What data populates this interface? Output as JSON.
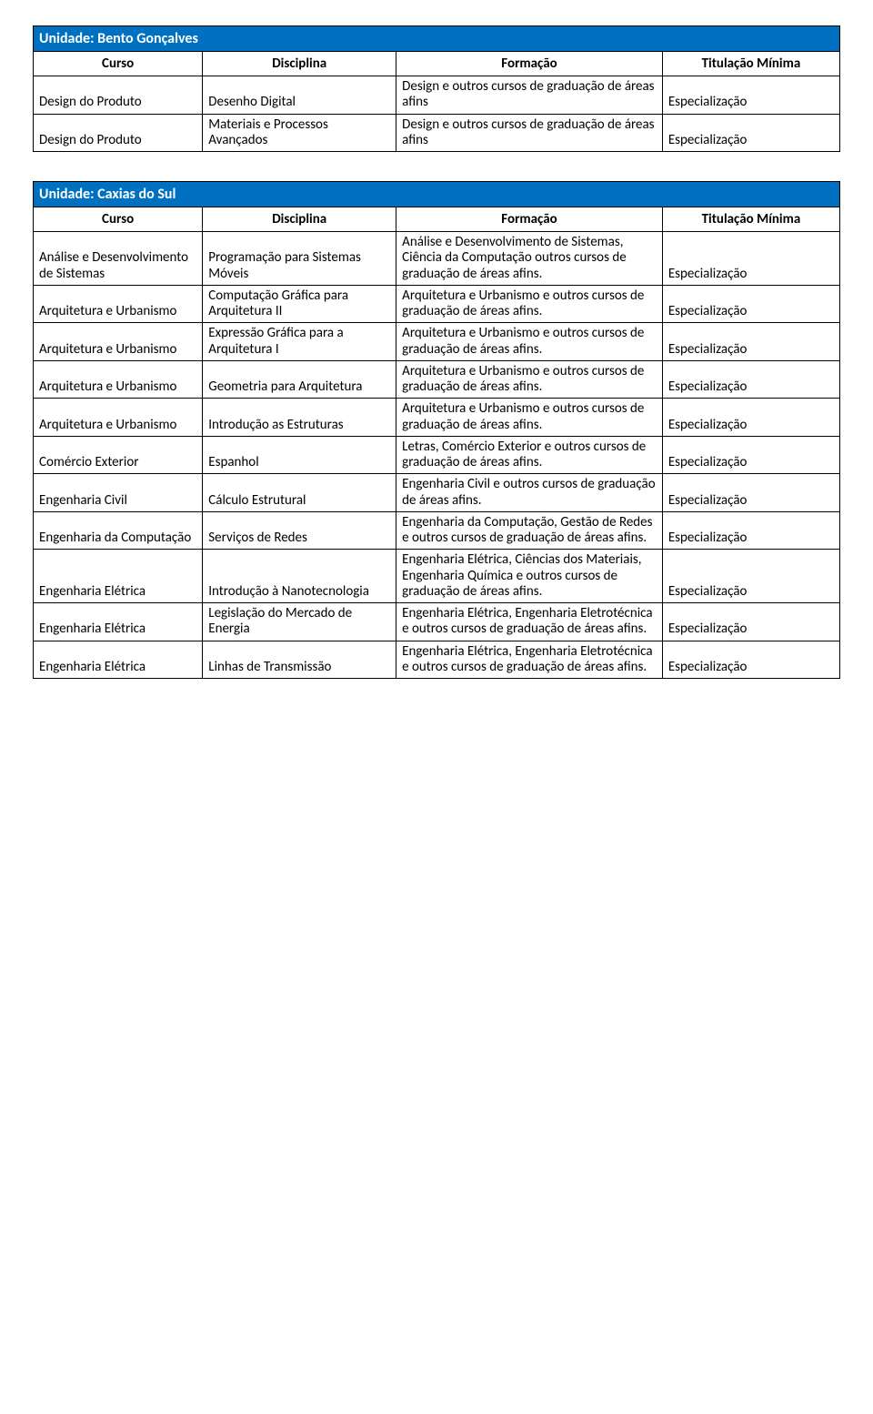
{
  "sections": [
    {
      "unit": "Unidade: Bento Gonçalves",
      "headers": {
        "curso": "Curso",
        "disciplina": "Disciplina",
        "formacao": "Formação",
        "titulacao": "Titulação Mínima"
      },
      "rows": [
        {
          "curso": "Design do Produto",
          "disciplina": "Desenho Digital",
          "formacao": "Design e outros cursos de graduação de áreas afins",
          "titulacao": "Especialização"
        },
        {
          "curso": "Design do Produto",
          "disciplina": "Materiais e Processos Avançados",
          "formacao": "Design e outros cursos de graduação de áreas afins",
          "titulacao": "Especialização"
        }
      ]
    },
    {
      "unit": "Unidade: Caxias do Sul",
      "headers": {
        "curso": "Curso",
        "disciplina": "Disciplina",
        "formacao": "Formação",
        "titulacao": "Titulação Mínima"
      },
      "rows": [
        {
          "curso": "Análise e Desenvolvimento de Sistemas",
          "disciplina": "Programação para Sistemas Móveis",
          "formacao": "Análise e Desenvolvimento de Sistemas, Ciência da Computação outros cursos de graduação de áreas afins.",
          "titulacao": "Especialização"
        },
        {
          "curso": "Arquitetura e Urbanismo",
          "disciplina": "Computação Gráfica para Arquitetura II",
          "formacao": "Arquitetura e Urbanismo e outros cursos de graduação de áreas afins.",
          "titulacao": "Especialização"
        },
        {
          "curso": "Arquitetura e Urbanismo",
          "disciplina": "Expressão Gráfica para a Arquitetura I",
          "formacao": "Arquitetura e Urbanismo e outros cursos de graduação de áreas afins.",
          "titulacao": "Especialização"
        },
        {
          "curso": " Arquitetura e Urbanismo",
          "disciplina": " Geometria para Arquitetura",
          "formacao": " Arquitetura e Urbanismo e outros cursos de graduação de áreas afins.",
          "titulacao": "Especialização"
        },
        {
          "curso": "Arquitetura e Urbanismo",
          "disciplina": "Introdução as Estruturas",
          "formacao": "Arquitetura e Urbanismo e outros cursos de graduação de áreas afins.",
          "titulacao": "Especialização"
        },
        {
          "curso": " Comércio Exterior",
          "disciplina": " Espanhol",
          "formacao": " Letras, Comércio Exterior e outros cursos de graduação de áreas afins.",
          "titulacao": "Especialização"
        },
        {
          "curso": "Engenharia Civil",
          "disciplina": "Cálculo Estrutural",
          "formacao": "Engenharia Civil e outros cursos de graduação de áreas afins.",
          "titulacao": "Especialização"
        },
        {
          "curso": "Engenharia da Computação",
          "disciplina": "Serviços de Redes",
          "formacao": "Engenharia da Computação, Gestão de Redes e outros cursos de graduação de áreas afins.",
          "titulacao": "Especialização"
        },
        {
          "curso": " Engenharia Elétrica",
          "disciplina": " Introdução à Nanotecnologia",
          "formacao": " Engenharia Elétrica, Ciências dos Materiais, Engenharia Química e outros cursos de graduação de áreas afins.",
          "titulacao": "Especialização"
        },
        {
          "curso": " Engenharia Elétrica",
          "disciplina": "Legislação do Mercado de Energia",
          "formacao": "Engenharia Elétrica, Engenharia Eletrotécnica e outros cursos de graduação de áreas afins.",
          "titulacao": "Especialização"
        },
        {
          "curso": " Engenharia Elétrica",
          "disciplina": "Linhas de Transmissão",
          "formacao": "Engenharia Elétrica, Engenharia Eletrotécnica e outros cursos de graduação de áreas afins.",
          "titulacao": "Especialização"
        }
      ]
    }
  ]
}
